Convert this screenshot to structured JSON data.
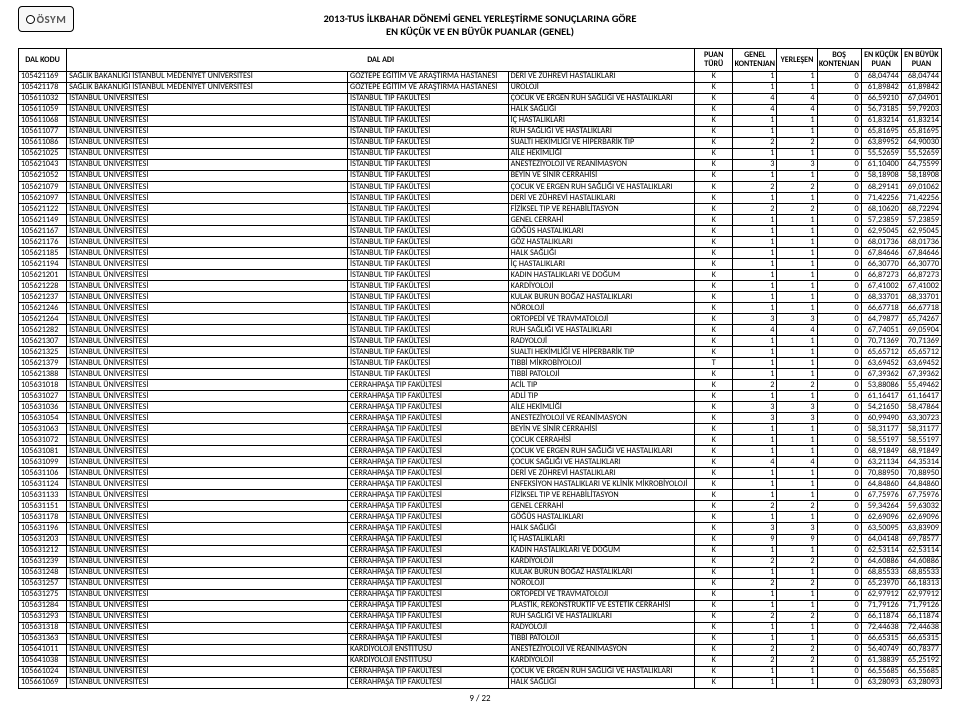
{
  "logo_text": "ÖSYM",
  "title_line1": "2013-TUS İLKBAHAR DÖNEMİ GENEL YERLEŞTİRME SONUÇLARINA GÖRE",
  "title_line2": "EN KÜÇÜK VE EN BÜYÜK PUANLAR (GENEL)",
  "columns": [
    "DAL KODU",
    "DAL ADI",
    "",
    "",
    "PUAN TÜRÜ",
    "GENEL KONTENJAN",
    "YERLEŞEN",
    "BOŞ KONTENJAN",
    "EN KÜÇÜK PUAN",
    "EN BÜYÜK PUAN"
  ],
  "rows": [
    [
      "105421169",
      "SAĞLIK BAKANLIĞI İSTANBUL MEDENİYET ÜNİVERSİTESİ",
      "GÖZTEPE EĞİTİM VE ARAŞTIRMA HASTANESİ",
      "DERİ VE ZÜHREVİ HASTALIKLARI",
      "K",
      "1",
      "1",
      "0",
      "68,04744",
      "68,04744"
    ],
    [
      "105421178",
      "SAĞLIK BAKANLIĞI İSTANBUL MEDENİYET ÜNİVERSİTESİ",
      "GÖZTEPE EĞİTİM VE ARAŞTIRMA HASTANESİ",
      "ÜROLOJİ",
      "K",
      "1",
      "1",
      "0",
      "61,89842",
      "61,89842"
    ],
    [
      "105611032",
      "İSTANBUL ÜNİVERSİTESİ",
      "İSTANBUL TIP FAKÜLTESİ",
      "ÇOCUK VE ERGEN RUH SAĞLIĞI VE HASTALIKLARI",
      "K",
      "4",
      "4",
      "0",
      "66,59210",
      "67,04901"
    ],
    [
      "105611059",
      "İSTANBUL ÜNİVERSİTESİ",
      "İSTANBUL TIP FAKÜLTESİ",
      "HALK SAĞLIĞI",
      "K",
      "4",
      "4",
      "0",
      "56,73185",
      "59,79203"
    ],
    [
      "105611068",
      "İSTANBUL ÜNİVERSİTESİ",
      "İSTANBUL TIP FAKÜLTESİ",
      "İÇ HASTALIKLARI",
      "K",
      "1",
      "1",
      "0",
      "61,83214",
      "61,83214"
    ],
    [
      "105611077",
      "İSTANBUL ÜNİVERSİTESİ",
      "İSTANBUL TIP FAKÜLTESİ",
      "RUH SAĞLIĞI VE HASTALIKLARI",
      "K",
      "1",
      "1",
      "0",
      "65,81695",
      "65,81695"
    ],
    [
      "105611086",
      "İSTANBUL ÜNİVERSİTESİ",
      "İSTANBUL TIP FAKÜLTESİ",
      "SUALTI HEKİMLİĞİ VE HİPERBARİK TIP",
      "K",
      "2",
      "2",
      "0",
      "63,89952",
      "64,90030"
    ],
    [
      "105621025",
      "İSTANBUL ÜNİVERSİTESİ",
      "İSTANBUL TIP FAKÜLTESİ",
      "AİLE HEKİMLİĞİ",
      "K",
      "1",
      "1",
      "0",
      "55,52659",
      "55,52659"
    ],
    [
      "105621043",
      "İSTANBUL ÜNİVERSİTESİ",
      "İSTANBUL TIP FAKÜLTESİ",
      "ANESTEZİYOLOJİ VE REANİMASYON",
      "K",
      "3",
      "3",
      "0",
      "61,10400",
      "64,75599"
    ],
    [
      "105621052",
      "İSTANBUL ÜNİVERSİTESİ",
      "İSTANBUL TIP FAKÜLTESİ",
      "BEYİN VE SİNİR CERRAHİSİ",
      "K",
      "1",
      "1",
      "0",
      "58,18908",
      "58,18908"
    ],
    [
      "105621079",
      "İSTANBUL ÜNİVERSİTESİ",
      "İSTANBUL TIP FAKÜLTESİ",
      "ÇOCUK VE ERGEN RUH SAĞLIĞI VE HASTALIKLARI",
      "K",
      "2",
      "2",
      "0",
      "68,29141",
      "69,01062"
    ],
    [
      "105621097",
      "İSTANBUL ÜNİVERSİTESİ",
      "İSTANBUL TIP FAKÜLTESİ",
      "DERİ VE ZÜHREVİ HASTALIKLARI",
      "K",
      "1",
      "1",
      "0",
      "71,42256",
      "71,42256"
    ],
    [
      "105621122",
      "İSTANBUL ÜNİVERSİTESİ",
      "İSTANBUL TIP FAKÜLTESİ",
      "FİZİKSEL TIP VE REHABİLİTASYON",
      "K",
      "2",
      "2",
      "0",
      "68,10620",
      "68,72294"
    ],
    [
      "105621149",
      "İSTANBUL ÜNİVERSİTESİ",
      "İSTANBUL TIP FAKÜLTESİ",
      "GENEL CERRAHİ",
      "K",
      "1",
      "1",
      "0",
      "57,23859",
      "57,23859"
    ],
    [
      "105621167",
      "İSTANBUL ÜNİVERSİTESİ",
      "İSTANBUL TIP FAKÜLTESİ",
      "GÖĞÜS HASTALIKLARI",
      "K",
      "1",
      "1",
      "0",
      "62,95045",
      "62,95045"
    ],
    [
      "105621176",
      "İSTANBUL ÜNİVERSİTESİ",
      "İSTANBUL TIP FAKÜLTESİ",
      "GÖZ HASTALIKLARI",
      "K",
      "1",
      "1",
      "0",
      "68,01736",
      "68,01736"
    ],
    [
      "105621185",
      "İSTANBUL ÜNİVERSİTESİ",
      "İSTANBUL TIP FAKÜLTESİ",
      "HALK SAĞLIĞI",
      "K",
      "1",
      "1",
      "0",
      "67,84646",
      "67,84646"
    ],
    [
      "105621194",
      "İSTANBUL ÜNİVERSİTESİ",
      "İSTANBUL TIP FAKÜLTESİ",
      "İÇ HASTALIKLARI",
      "K",
      "1",
      "1",
      "0",
      "66,30770",
      "66,30770"
    ],
    [
      "105621201",
      "İSTANBUL ÜNİVERSİTESİ",
      "İSTANBUL TIP FAKÜLTESİ",
      "KADIN HASTALIKLARI VE DOĞUM",
      "K",
      "1",
      "1",
      "0",
      "66,87273",
      "66,87273"
    ],
    [
      "105621228",
      "İSTANBUL ÜNİVERSİTESİ",
      "İSTANBUL TIP FAKÜLTESİ",
      "KARDİYOLOJİ",
      "K",
      "1",
      "1",
      "0",
      "67,41002",
      "67,41002"
    ],
    [
      "105621237",
      "İSTANBUL ÜNİVERSİTESİ",
      "İSTANBUL TIP FAKÜLTESİ",
      "KULAK BURUN BOĞAZ HASTALIKLARI",
      "K",
      "1",
      "1",
      "0",
      "68,33701",
      "68,33701"
    ],
    [
      "105621246",
      "İSTANBUL ÜNİVERSİTESİ",
      "İSTANBUL TIP FAKÜLTESİ",
      "NÖROLOJİ",
      "K",
      "1",
      "1",
      "0",
      "66,67718",
      "66,67718"
    ],
    [
      "105621264",
      "İSTANBUL ÜNİVERSİTESİ",
      "İSTANBUL TIP FAKÜLTESİ",
      "ORTOPEDİ VE TRAVMATOLOJİ",
      "K",
      "3",
      "3",
      "0",
      "64,79877",
      "65,74267"
    ],
    [
      "105621282",
      "İSTANBUL ÜNİVERSİTESİ",
      "İSTANBUL TIP FAKÜLTESİ",
      "RUH SAĞLIĞI VE HASTALIKLARI",
      "K",
      "4",
      "4",
      "0",
      "67,74051",
      "69,05904"
    ],
    [
      "105621307",
      "İSTANBUL ÜNİVERSİTESİ",
      "İSTANBUL TIP FAKÜLTESİ",
      "RADYOLOJİ",
      "K",
      "1",
      "1",
      "0",
      "70,71369",
      "70,71369"
    ],
    [
      "105621325",
      "İSTANBUL ÜNİVERSİTESİ",
      "İSTANBUL TIP FAKÜLTESİ",
      "SUALTI HEKİMLİĞİ VE HİPERBARİK TIP",
      "K",
      "1",
      "1",
      "0",
      "65,65712",
      "65,65712"
    ],
    [
      "105621379",
      "İSTANBUL ÜNİVERSİTESİ",
      "İSTANBUL TIP FAKÜLTESİ",
      "TIBBİ MİKROBİYOLOJİ",
      "T",
      "1",
      "1",
      "0",
      "63,69452",
      "63,69452"
    ],
    [
      "105621388",
      "İSTANBUL ÜNİVERSİTESİ",
      "İSTANBUL TIP FAKÜLTESİ",
      "TIBBİ PATOLOJİ",
      "K",
      "1",
      "1",
      "0",
      "67,39362",
      "67,39362"
    ],
    [
      "105631018",
      "İSTANBUL ÜNİVERSİTESİ",
      "CERRAHPAŞA TIP FAKÜLTESİ",
      "ACİL TIP",
      "K",
      "2",
      "2",
      "0",
      "53,88086",
      "55,49462"
    ],
    [
      "105631027",
      "İSTANBUL ÜNİVERSİTESİ",
      "CERRAHPAŞA TIP FAKÜLTESİ",
      "ADLİ TIP",
      "K",
      "1",
      "1",
      "0",
      "61,16417",
      "61,16417"
    ],
    [
      "105631036",
      "İSTANBUL ÜNİVERSİTESİ",
      "CERRAHPAŞA TIP FAKÜLTESİ",
      "AİLE HEKİMLİĞİ",
      "K",
      "3",
      "3",
      "0",
      "54,21650",
      "58,47864"
    ],
    [
      "105631054",
      "İSTANBUL ÜNİVERSİTESİ",
      "CERRAHPAŞA TIP FAKÜLTESİ",
      "ANESTEZİYOLOJİ VE REANİMASYON",
      "K",
      "3",
      "3",
      "0",
      "60,99490",
      "63,30723"
    ],
    [
      "105631063",
      "İSTANBUL ÜNİVERSİTESİ",
      "CERRAHPAŞA TIP FAKÜLTESİ",
      "BEYİN VE SİNİR CERRAHİSİ",
      "K",
      "1",
      "1",
      "0",
      "58,31177",
      "58,31177"
    ],
    [
      "105631072",
      "İSTANBUL ÜNİVERSİTESİ",
      "CERRAHPAŞA TIP FAKÜLTESİ",
      "ÇOCUK CERRAHİSİ",
      "K",
      "1",
      "1",
      "0",
      "58,55197",
      "58,55197"
    ],
    [
      "105631081",
      "İSTANBUL ÜNİVERSİTESİ",
      "CERRAHPAŞA TIP FAKÜLTESİ",
      "ÇOCUK VE ERGEN RUH SAĞLIĞI VE HASTALIKLARI",
      "K",
      "1",
      "1",
      "0",
      "68,91849",
      "68,91849"
    ],
    [
      "105631099",
      "İSTANBUL ÜNİVERSİTESİ",
      "CERRAHPAŞA TIP FAKÜLTESİ",
      "ÇOCUK SAĞLIĞI VE HASTALIKLARI",
      "K",
      "4",
      "4",
      "0",
      "63,21134",
      "64,35314"
    ],
    [
      "105631106",
      "İSTANBUL ÜNİVERSİTESİ",
      "CERRAHPAŞA TIP FAKÜLTESİ",
      "DERİ VE ZÜHREVİ HASTALIKLARI",
      "K",
      "1",
      "1",
      "0",
      "70,88950",
      "70,88950"
    ],
    [
      "105631124",
      "İSTANBUL ÜNİVERSİTESİ",
      "CERRAHPAŞA TIP FAKÜLTESİ",
      "ENFEKSİYON HASTALIKLARI VE KLİNİK MİKROBİYOLOJİ",
      "K",
      "1",
      "1",
      "0",
      "64,84860",
      "64,84860"
    ],
    [
      "105631133",
      "İSTANBUL ÜNİVERSİTESİ",
      "CERRAHPAŞA TIP FAKÜLTESİ",
      "FİZİKSEL TIP VE REHABİLİTASYON",
      "K",
      "1",
      "1",
      "0",
      "67,75976",
      "67,75976"
    ],
    [
      "105631151",
      "İSTANBUL ÜNİVERSİTESİ",
      "CERRAHPAŞA TIP FAKÜLTESİ",
      "GENEL CERRAHİ",
      "K",
      "2",
      "2",
      "0",
      "59,34264",
      "59,63032"
    ],
    [
      "105631178",
      "İSTANBUL ÜNİVERSİTESİ",
      "CERRAHPAŞA TIP FAKÜLTESİ",
      "GÖĞÜS HASTALIKLARI",
      "K",
      "1",
      "1",
      "0",
      "62,69096",
      "62,69096"
    ],
    [
      "105631196",
      "İSTANBUL ÜNİVERSİTESİ",
      "CERRAHPAŞA TIP FAKÜLTESİ",
      "HALK SAĞLIĞI",
      "K",
      "3",
      "3",
      "0",
      "63,50095",
      "63,83909"
    ],
    [
      "105631203",
      "İSTANBUL ÜNİVERSİTESİ",
      "CERRAHPAŞA TIP FAKÜLTESİ",
      "İÇ HASTALIKLARI",
      "K",
      "9",
      "9",
      "0",
      "64,04148",
      "69,78577"
    ],
    [
      "105631212",
      "İSTANBUL ÜNİVERSİTESİ",
      "CERRAHPAŞA TIP FAKÜLTESİ",
      "KADIN HASTALIKLARI VE DOĞUM",
      "K",
      "1",
      "1",
      "0",
      "62,53114",
      "62,53114"
    ],
    [
      "105631239",
      "İSTANBUL ÜNİVERSİTESİ",
      "CERRAHPAŞA TIP FAKÜLTESİ",
      "KARDİYOLOJİ",
      "K",
      "2",
      "2",
      "0",
      "64,60886",
      "64,60886"
    ],
    [
      "105631248",
      "İSTANBUL ÜNİVERSİTESİ",
      "CERRAHPAŞA TIP FAKÜLTESİ",
      "KULAK BURUN BOĞAZ HASTALIKLARI",
      "K",
      "1",
      "1",
      "0",
      "68,85533",
      "68,85533"
    ],
    [
      "105631257",
      "İSTANBUL ÜNİVERSİTESİ",
      "CERRAHPAŞA TIP FAKÜLTESİ",
      "NÖROLOJİ",
      "K",
      "2",
      "2",
      "0",
      "65,23970",
      "66,18313"
    ],
    [
      "105631275",
      "İSTANBUL ÜNİVERSİTESİ",
      "CERRAHPAŞA TIP FAKÜLTESİ",
      "ORTOPEDİ VE TRAVMATOLOJİ",
      "K",
      "1",
      "1",
      "0",
      "62,97912",
      "62,97912"
    ],
    [
      "105631284",
      "İSTANBUL ÜNİVERSİTESİ",
      "CERRAHPAŞA TIP FAKÜLTESİ",
      "PLASTİK, REKONSTRÜKTİF VE ESTETİK CERRAHİSİ",
      "K",
      "1",
      "1",
      "0",
      "71,79126",
      "71,79126"
    ],
    [
      "105631293",
      "İSTANBUL ÜNİVERSİTESİ",
      "CERRAHPAŞA TIP FAKÜLTESİ",
      "RUH SAĞLIĞI VE HASTALIKLARI",
      "K",
      "2",
      "2",
      "0",
      "66,11874",
      "66,11874"
    ],
    [
      "105631318",
      "İSTANBUL ÜNİVERSİTESİ",
      "CERRAHPAŞA TIP FAKÜLTESİ",
      "RADYOLOJİ",
      "K",
      "1",
      "1",
      "0",
      "72,44638",
      "72,44638"
    ],
    [
      "105631363",
      "İSTANBUL ÜNİVERSİTESİ",
      "CERRAHPAŞA TIP FAKÜLTESİ",
      "TIBBİ PATOLOJİ",
      "K",
      "1",
      "1",
      "0",
      "66,65315",
      "66,65315"
    ],
    [
      "105641011",
      "İSTANBUL ÜNİVERSİTESİ",
      "KARDİYOLOJİ ENSTİTÜSÜ",
      "ANESTEZİYOLOJİ VE REANİMASYON",
      "K",
      "2",
      "2",
      "0",
      "56,40749",
      "60,78377"
    ],
    [
      "105641038",
      "İSTANBUL ÜNİVERSİTESİ",
      "KARDİYOLOJİ ENSTİTÜSÜ",
      "KARDİYOLOJİ",
      "K",
      "2",
      "2",
      "0",
      "61,38839",
      "65,25192"
    ],
    [
      "105661024",
      "İSTANBUL ÜNİVERSİTESİ",
      "CERRAHPAŞA TIP FAKÜLTESİ",
      "ÇOCUK VE ERGEN RUH SAĞLIĞI VE HASTALIKLARI",
      "K",
      "1",
      "1",
      "0",
      "66,55685",
      "66,55685"
    ],
    [
      "105661069",
      "İSTANBUL ÜNİVERSİTESİ",
      "CERRAHPAŞA TIP FAKÜLTESİ",
      "HALK SAĞLIĞI",
      "K",
      "1",
      "1",
      "0",
      "63,28093",
      "63,28093"
    ]
  ],
  "footer": "9 / 22"
}
